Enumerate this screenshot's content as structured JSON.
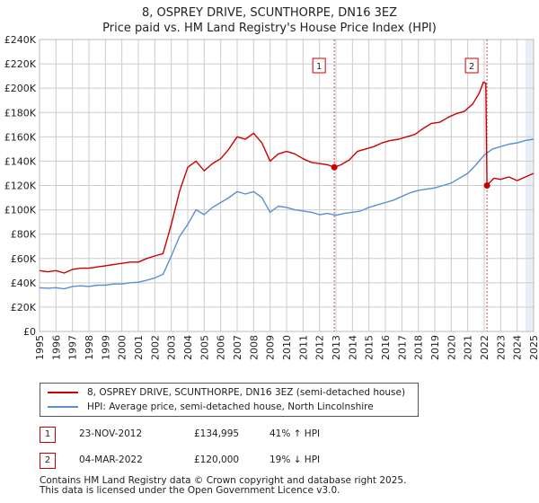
{
  "title_line1": "8, OSPREY DRIVE, SCUNTHORPE, DN16 3EZ",
  "title_line2": "Price paid vs. HM Land Registry's House Price Index (HPI)",
  "colors": {
    "property": "#cc0000",
    "hpi": "#5b8fd0",
    "marker_line": "#cc0000",
    "grid": "#cccccc",
    "shade": "#e8eef8"
  },
  "chart_data": {
    "type": "line",
    "title": "8, OSPREY DRIVE, SCUNTHORPE, DN16 3EZ — Price paid vs. HM Land Registry's House Price Index (HPI)",
    "xlim": [
      1995,
      2025
    ],
    "ylim": [
      0,
      240000
    ],
    "y_ticks": [
      0,
      20000,
      40000,
      60000,
      80000,
      100000,
      120000,
      140000,
      160000,
      180000,
      200000,
      220000,
      240000
    ],
    "y_tick_labels": [
      "£0",
      "£20K",
      "£40K",
      "£60K",
      "£80K",
      "£100K",
      "£120K",
      "£140K",
      "£160K",
      "£180K",
      "£200K",
      "£220K",
      "£240K"
    ],
    "x_ticks": [
      1995,
      1996,
      1997,
      1998,
      1999,
      2000,
      2001,
      2002,
      2003,
      2004,
      2005,
      2006,
      2007,
      2008,
      2009,
      2010,
      2011,
      2012,
      2013,
      2014,
      2015,
      2016,
      2017,
      2018,
      2019,
      2020,
      2021,
      2022,
      2023,
      2024,
      2025
    ],
    "x_tick_labels": [
      "1995",
      "1996",
      "1997",
      "1998",
      "1999",
      "2000",
      "2001",
      "2002",
      "2003",
      "2004",
      "2005",
      "2006",
      "2007",
      "2008",
      "2009",
      "2010",
      "2011",
      "2012",
      "2013",
      "2014",
      "2015",
      "2016",
      "2017",
      "2018",
      "2019",
      "2020",
      "2021",
      "2022",
      "2023",
      "2024",
      "2025"
    ],
    "grid": true,
    "shaded_ranges": [
      [
        2024.5,
        2025
      ]
    ],
    "series": [
      {
        "name": "8, OSPREY DRIVE, SCUNTHORPE, DN16 3EZ (semi-detached house)",
        "x": [
          1995,
          1995.5,
          1996,
          1996.5,
          1997,
          1997.5,
          1998,
          1998.5,
          1999,
          1999.5,
          2000,
          2000.5,
          2001,
          2001.5,
          2002,
          2002.5,
          2003,
          2003.5,
          2004,
          2004.5,
          2005,
          2005.5,
          2006,
          2006.5,
          2007,
          2007.5,
          2008,
          2008.5,
          2009,
          2009.5,
          2010,
          2010.5,
          2011,
          2011.5,
          2012,
          2012.5,
          2012.9,
          2013.3,
          2013.8,
          2014.3,
          2014.8,
          2015.3,
          2015.8,
          2016.3,
          2016.8,
          2017.3,
          2017.8,
          2018.3,
          2018.8,
          2019.3,
          2019.8,
          2020.3,
          2020.8,
          2021.3,
          2021.7,
          2021.95,
          2022.1,
          2022.17,
          2022.3,
          2022.6,
          2023,
          2023.5,
          2024,
          2024.5,
          2025
        ],
        "values": [
          50000,
          49000,
          50000,
          48000,
          51000,
          52000,
          52000,
          53000,
          54000,
          55000,
          56000,
          57000,
          57000,
          60000,
          62000,
          64000,
          88000,
          115000,
          135000,
          140000,
          132000,
          138000,
          142000,
          150000,
          160000,
          158000,
          163000,
          155000,
          140000,
          146000,
          148000,
          146000,
          142000,
          139000,
          138000,
          137000,
          134995,
          137000,
          141000,
          148000,
          150000,
          152000,
          155000,
          157000,
          158000,
          160000,
          162000,
          167000,
          171000,
          172000,
          176000,
          179000,
          181000,
          187000,
          196000,
          205000,
          204000,
          120000,
          122000,
          126000,
          125000,
          127000,
          124000,
          127000,
          130000
        ]
      },
      {
        "name": "HPI: Average price, semi-detached house, North Lincolnshire",
        "x": [
          1995,
          1995.5,
          1996,
          1996.5,
          1997,
          1997.5,
          1998,
          1998.5,
          1999,
          1999.5,
          2000,
          2000.5,
          2001,
          2001.5,
          2002,
          2002.5,
          2003,
          2003.5,
          2004,
          2004.5,
          2005,
          2005.5,
          2006,
          2006.5,
          2007,
          2007.5,
          2008,
          2008.5,
          2009,
          2009.5,
          2010,
          2010.5,
          2011,
          2011.5,
          2012,
          2012.5,
          2013,
          2013.5,
          2014,
          2014.5,
          2015,
          2015.5,
          2016,
          2016.5,
          2017,
          2017.5,
          2018,
          2018.5,
          2019,
          2019.5,
          2020,
          2020.5,
          2021,
          2021.5,
          2022,
          2022.5,
          2023,
          2023.5,
          2024,
          2024.5,
          2025
        ],
        "values": [
          36000,
          35500,
          36000,
          35000,
          37000,
          37500,
          37000,
          38000,
          38000,
          39000,
          39000,
          40000,
          40500,
          42000,
          44000,
          47000,
          62000,
          78000,
          88000,
          100000,
          96000,
          102000,
          106000,
          110000,
          115000,
          113000,
          115000,
          110000,
          98000,
          103000,
          102000,
          100000,
          99000,
          98000,
          96000,
          97000,
          95500,
          97000,
          98000,
          99000,
          102000,
          104000,
          106000,
          108000,
          111000,
          114000,
          116000,
          117000,
          118000,
          120000,
          122000,
          126000,
          130000,
          137000,
          145000,
          150000,
          152000,
          154000,
          155000,
          157000,
          158000
        ]
      }
    ],
    "transactions": [
      {
        "id": "1",
        "x": 2012.9,
        "price": 134995
      },
      {
        "id": "2",
        "x": 2022.17,
        "price": 120000
      }
    ]
  },
  "legend": {
    "property_label": "8, OSPREY DRIVE, SCUNTHORPE, DN16 3EZ (semi-detached house)",
    "hpi_label": "HPI: Average price, semi-detached house, North Lincolnshire"
  },
  "transactions": [
    {
      "id": "1",
      "date": "23-NOV-2012",
      "price": "£134,995",
      "hpi": "41% ↑ HPI"
    },
    {
      "id": "2",
      "date": "04-MAR-2022",
      "price": "£120,000",
      "hpi": "19% ↓ HPI"
    }
  ],
  "footer_line1": "Contains HM Land Registry data © Crown copyright and database right 2025.",
  "footer_line2": "This data is licensed under the Open Government Licence v3.0."
}
